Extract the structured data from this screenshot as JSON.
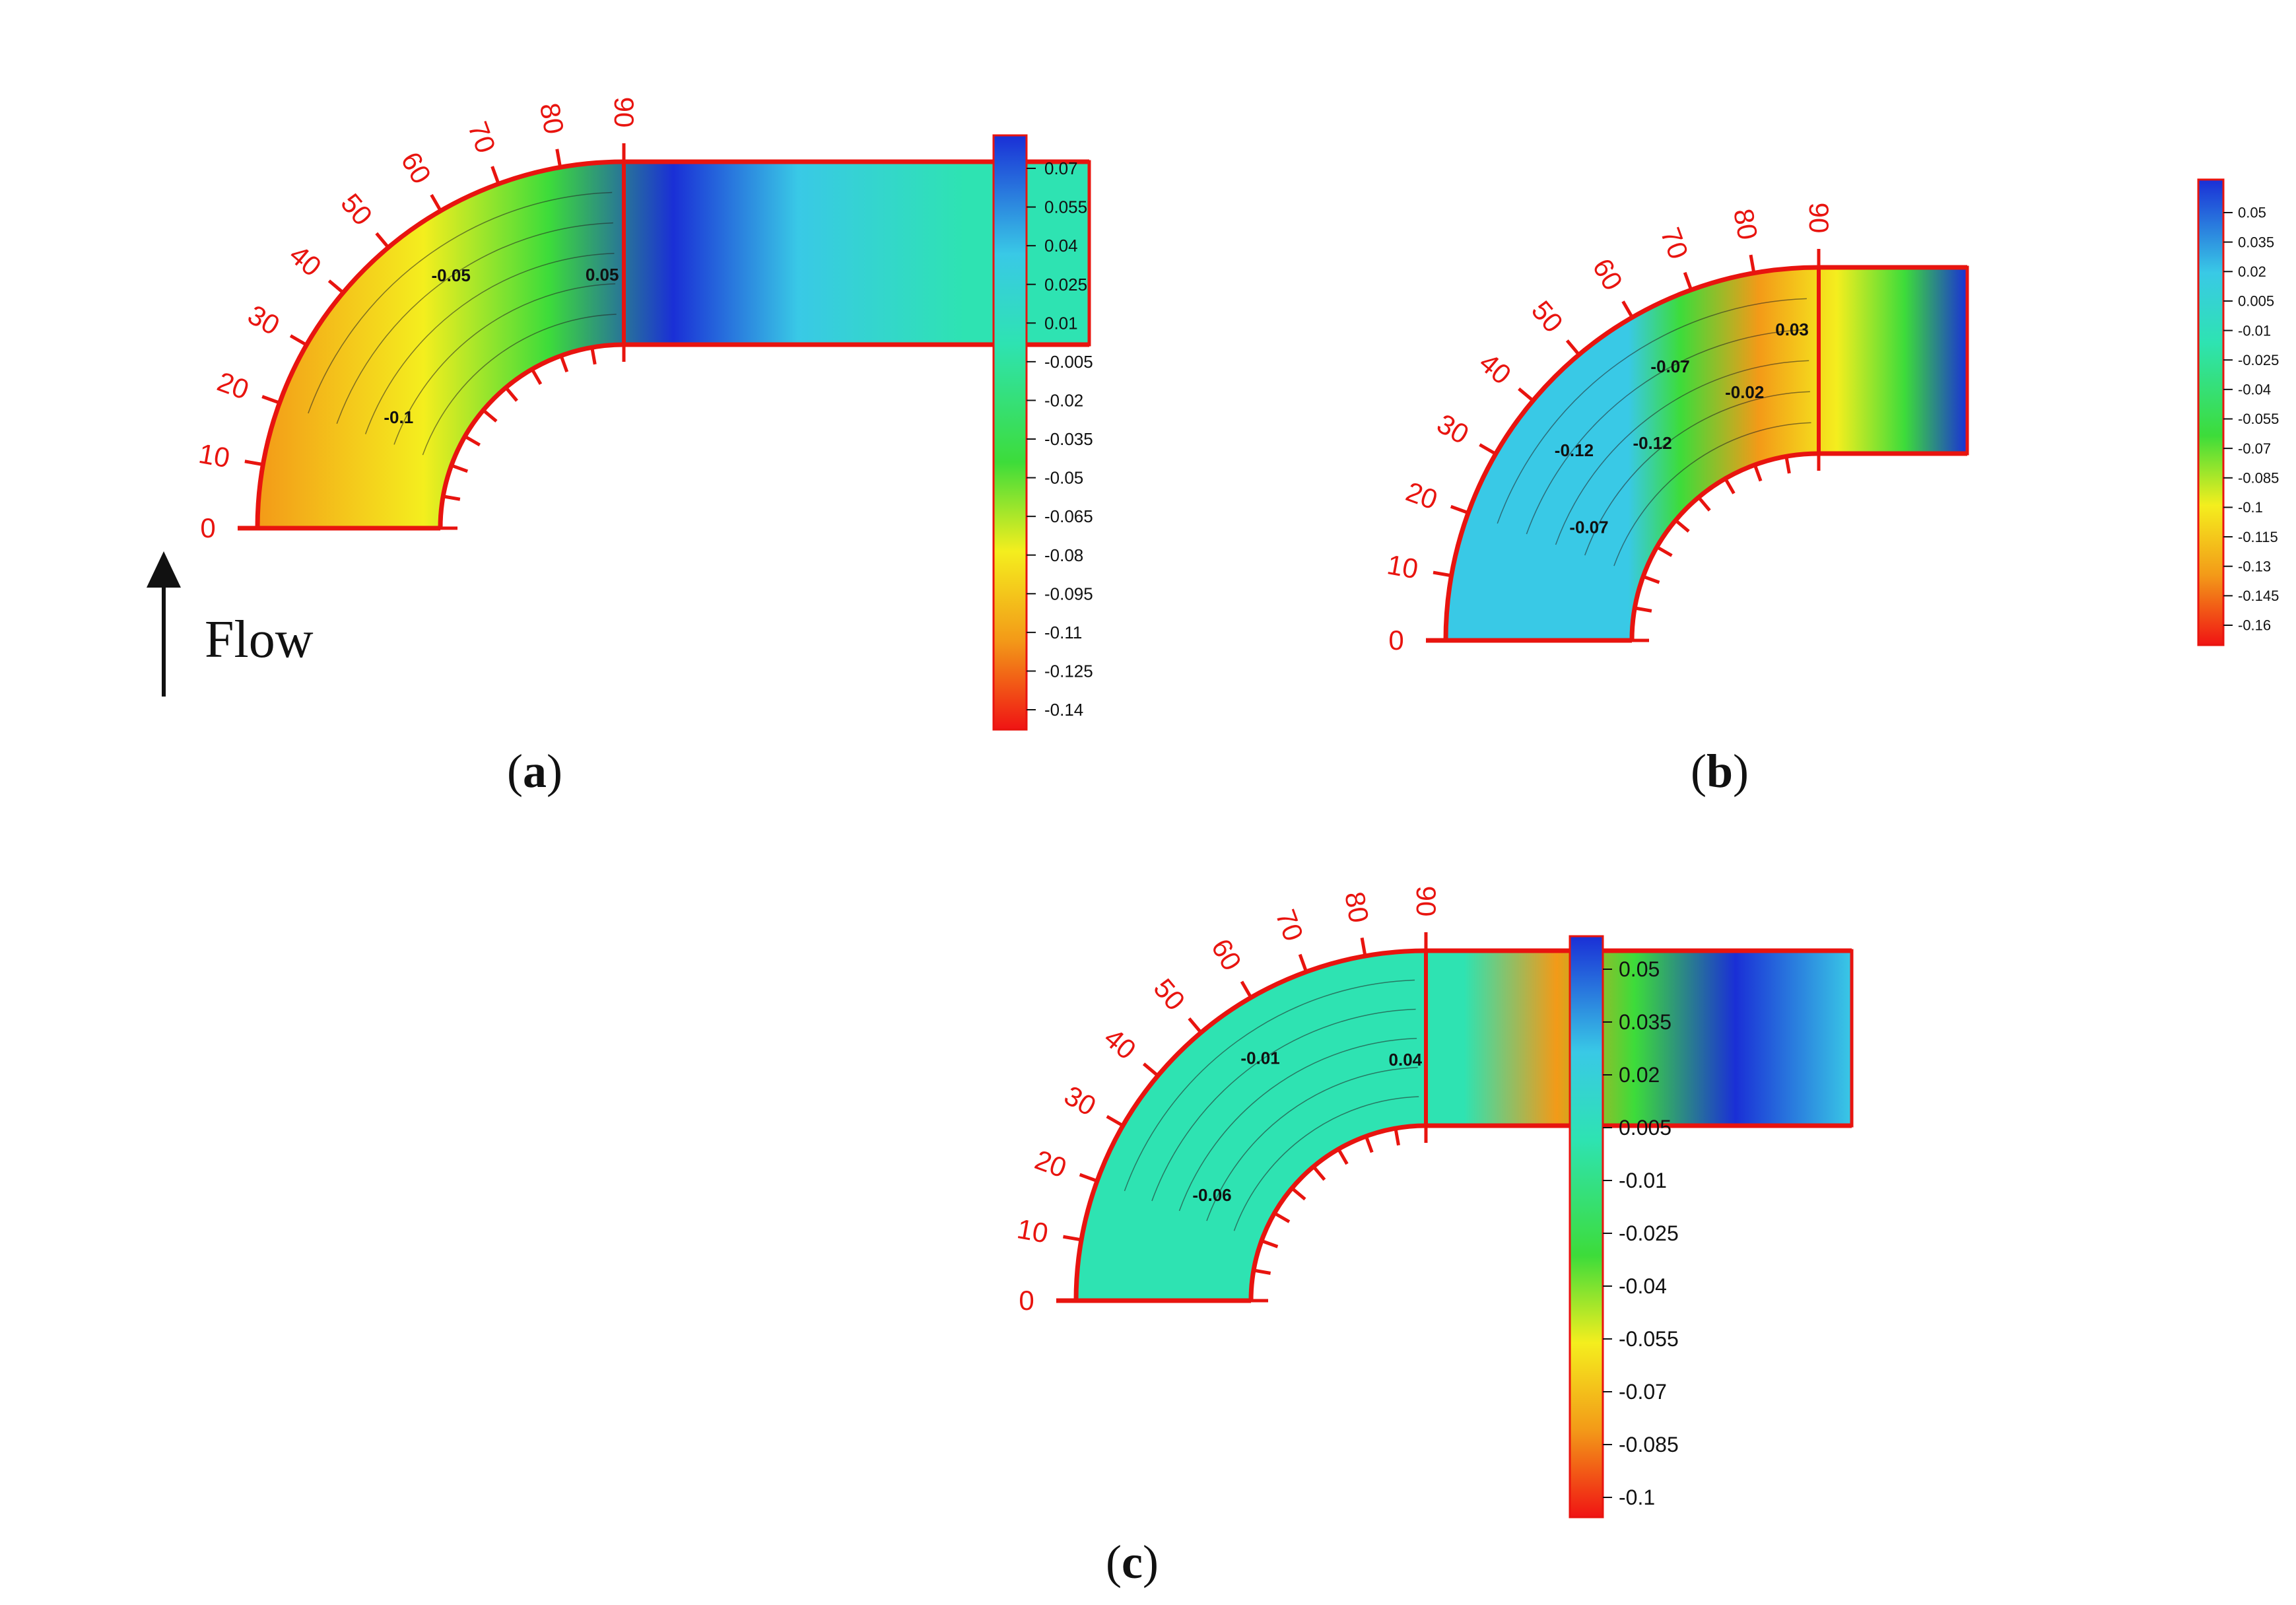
{
  "panels": [
    {
      "id": "a",
      "caption_open": "(",
      "caption_letter": "a",
      "caption_close": ")",
      "angle_labels": [
        "0",
        "10",
        "20",
        "30",
        "40",
        "50",
        "60",
        "70",
        "80",
        "90"
      ],
      "colorbar_ticks": [
        "0.07",
        "0.055",
        "0.04",
        "0.025",
        "0.01",
        "-0.005",
        "-0.02",
        "-0.035",
        "-0.05",
        "-0.065",
        "-0.08",
        "-0.095",
        "-0.11",
        "-0.125",
        "-0.14"
      ],
      "contour_labels": [
        "-0.1",
        "-0.05",
        "0.05"
      ]
    },
    {
      "id": "b",
      "caption_open": "(",
      "caption_letter": "b",
      "caption_close": ")",
      "angle_labels": [
        "0",
        "10",
        "20",
        "30",
        "40",
        "50",
        "60",
        "70",
        "80",
        "90"
      ],
      "colorbar_ticks": [
        "0.05",
        "0.035",
        "0.02",
        "0.005",
        "-0.01",
        "-0.025",
        "-0.04",
        "-0.055",
        "-0.07",
        "-0.085",
        "-0.1",
        "-0.115",
        "-0.13",
        "-0.145",
        "-0.16"
      ],
      "contour_labels": [
        "-0.07",
        "-0.12",
        "-0.12",
        "-0.07",
        "-0.02",
        "0.03"
      ]
    },
    {
      "id": "c",
      "caption_open": "(",
      "caption_letter": "c",
      "caption_close": ")",
      "angle_labels": [
        "0",
        "10",
        "20",
        "30",
        "40",
        "50",
        "60",
        "70",
        "80",
        "90"
      ],
      "colorbar_ticks": [
        "0.05",
        "0.035",
        "0.02",
        "0.005",
        "-0.01",
        "-0.025",
        "-0.04",
        "-0.055",
        "-0.07",
        "-0.085",
        "-0.1"
      ],
      "contour_labels": [
        "-0.06",
        "-0.01",
        "0.04"
      ]
    }
  ],
  "flow_label": "Flow",
  "colors": {
    "axis_red": "#e8140f",
    "cold": "#1a2fd6",
    "cyan": "#39c9e6",
    "teal": "#2ee3b2",
    "green": "#3ddc3a",
    "yellow": "#f4ee1e",
    "orange": "#f39a18",
    "red": "#f01414"
  }
}
